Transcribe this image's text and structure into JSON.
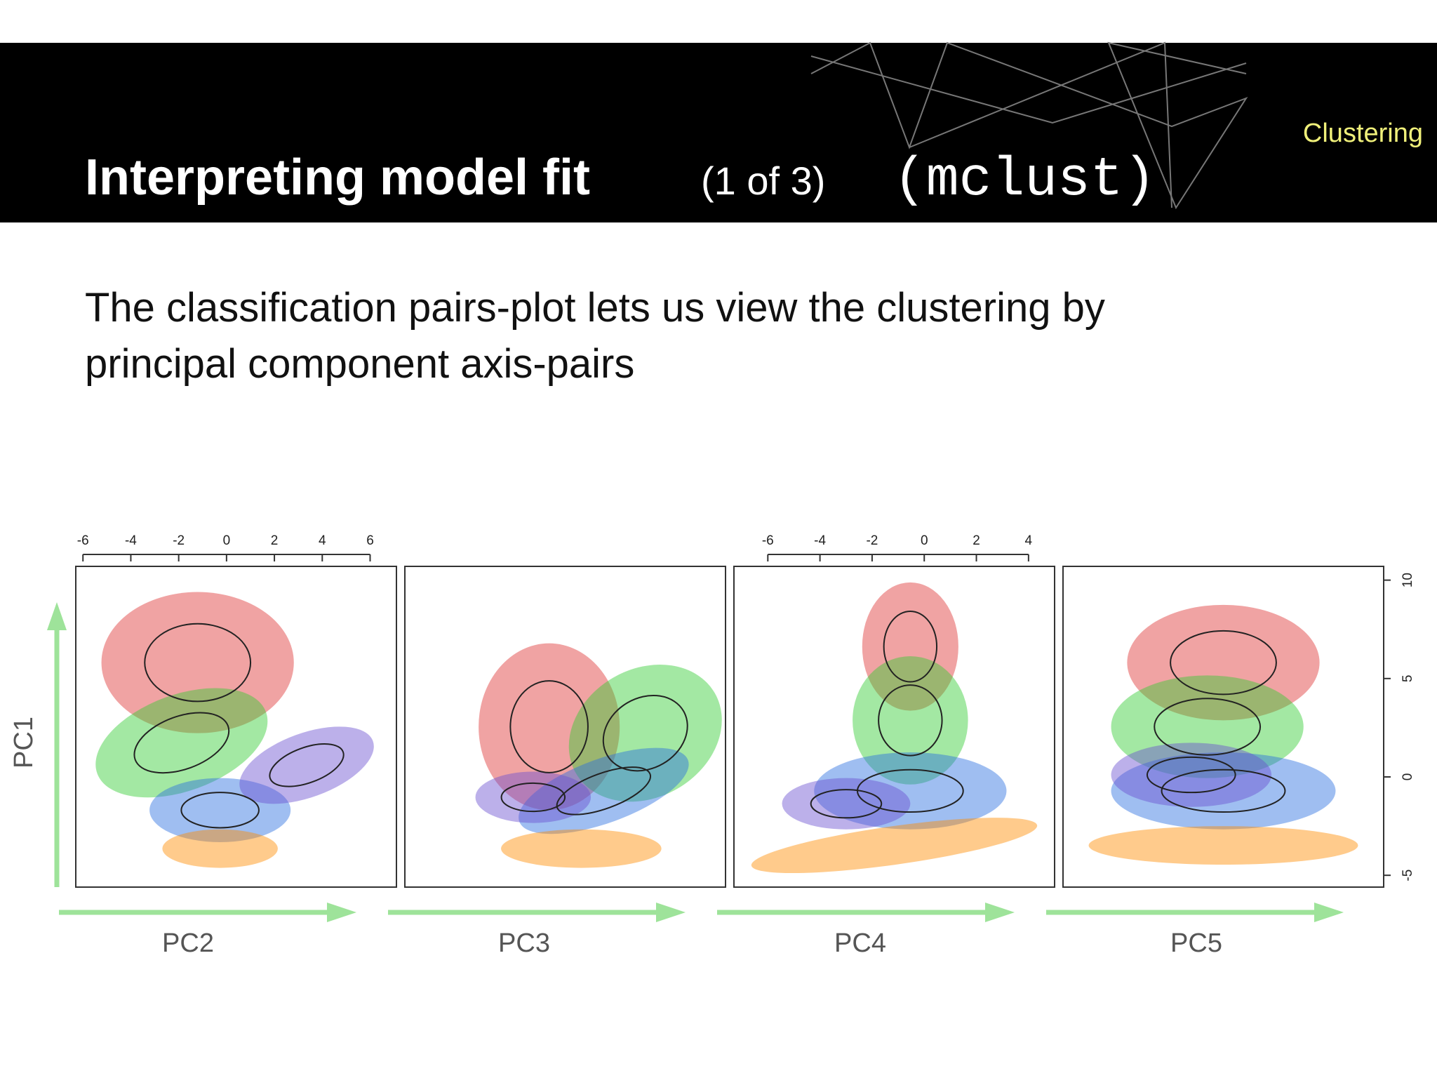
{
  "header": {
    "title": "Interpreting model fit",
    "part": "(1 of 3)",
    "code": "(mclust)",
    "section": "Clustering"
  },
  "body": {
    "lines": [
      "The classification pairs-plot lets us view the clustering by",
      "principal component axis-pairs"
    ]
  },
  "figure": {
    "y_label": "PC1",
    "panels": [
      {
        "x_label": "PC2"
      },
      {
        "x_label": "PC3"
      },
      {
        "x_label": "PC4"
      },
      {
        "x_label": "PC5"
      }
    ],
    "top_axes": [
      {
        "panel": 0,
        "xlim": [
          -6.3,
          7.1
        ],
        "xticks": [
          -6,
          -4,
          -2,
          0,
          2,
          4,
          6
        ]
      },
      {
        "panel": 2,
        "xlim": [
          -7.3,
          5.0
        ],
        "xticks": [
          -6,
          -4,
          -2,
          0,
          2,
          4
        ]
      }
    ],
    "right_axis": {
      "ylim": [
        -5.6,
        10.7
      ],
      "yticks": [
        10,
        5,
        0,
        -5
      ]
    }
  }
}
